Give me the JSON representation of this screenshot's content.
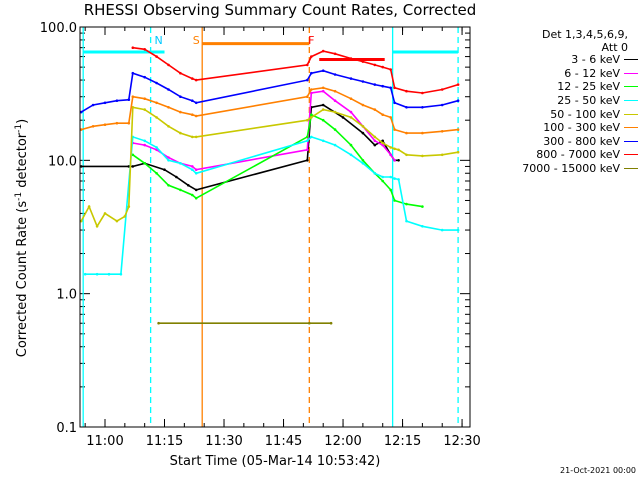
{
  "chart_data": {
    "type": "line",
    "title": "RHESSI Observing Summary Count Rates, Corrected",
    "xlabel": "Start Time (05-Mar-14 10:53:42)",
    "ylabel": "Corrected Count Rate (s⁻¹ detector⁻¹)",
    "ylabel_main": "Corrected Count Rate (s",
    "ylabel_sup1": "-1",
    "ylabel_mid": " detector",
    "ylabel_sup2": "-1",
    "ylabel_end": ")",
    "yscale": "log",
    "ylim": [
      0.1,
      100
    ],
    "xlim": [
      "10:53:42",
      "12:32:00"
    ],
    "x_ticks": [
      "11:00",
      "11:15",
      "11:30",
      "11:45",
      "12:00",
      "12:15",
      "12:30"
    ],
    "y_ticks": [
      "0.1",
      "1.0",
      "10.0",
      "100.0"
    ],
    "detectors": "Det 1,3,4,5,6,9,\nAtt 0",
    "legend_placement": "right",
    "footer_date": "21-Oct-2021 00:00",
    "markers": [
      {
        "label": "N",
        "time": "11:13:30",
        "color": "#00c8ff"
      },
      {
        "label": "S",
        "time": "11:23:00",
        "color": "#ff8000"
      },
      {
        "label": "F",
        "time": "11:52:00",
        "color": "#ff0000"
      }
    ],
    "vertical_lines": [
      {
        "time": "10:54:30",
        "color": "#00ffff",
        "style": "solid"
      },
      {
        "time": "11:11:30",
        "color": "#00ffff",
        "style": "dashed"
      },
      {
        "time": "11:24:30",
        "color": "#ff8000",
        "style": "solid"
      },
      {
        "time": "11:51:30",
        "color": "#ff8000",
        "style": "dashed"
      },
      {
        "time": "12:12:30",
        "color": "#00ffff",
        "style": "solid"
      },
      {
        "time": "12:29:00",
        "color": "#00ffff",
        "style": "dashed"
      }
    ],
    "flags": [
      {
        "start": "10:54:30",
        "end": "11:15:00",
        "y": 65,
        "color": "#00ffff"
      },
      {
        "start": "11:24:30",
        "end": "11:51:30",
        "y": 75,
        "color": "#ff8000"
      },
      {
        "start": "11:54:00",
        "end": "12:10:30",
        "y": 57,
        "color": "#ff0000"
      },
      {
        "start": "12:12:30",
        "end": "12:29:00",
        "y": 65,
        "color": "#00ffff"
      }
    ],
    "series": [
      {
        "name": "3 - 6 keV",
        "color": "#000000",
        "x": [
          "10:54",
          "11:06",
          "11:07",
          "11:10",
          "11:15",
          "11:18",
          "11:21",
          "11:23",
          "11:51",
          "11:52",
          "11:55",
          "12:00",
          "12:05",
          "12:08",
          "12:10",
          "12:12",
          "12:13",
          "12:14"
        ],
        "y": [
          9,
          9,
          9,
          9.5,
          8.5,
          7.5,
          6.5,
          6,
          10,
          25,
          26,
          21,
          16,
          13,
          14,
          11,
          10,
          10
        ]
      },
      {
        "name": "6 - 12 keV",
        "color": "#ff00ff",
        "x": [
          "11:07",
          "11:10",
          "11:13",
          "11:16",
          "11:19",
          "11:22",
          "11:23",
          "11:51",
          "11:52",
          "11:55",
          "11:58",
          "12:02",
          "12:05",
          "12:08",
          "12:10",
          "12:12",
          "12:13"
        ],
        "y": [
          13.5,
          13,
          12,
          10.5,
          9.5,
          9,
          8.5,
          12,
          32,
          33,
          28,
          23,
          18,
          14,
          13,
          11,
          10
        ]
      },
      {
        "name": "12 - 25 keV",
        "color": "#00ff00",
        "x": [
          "11:07",
          "11:10",
          "11:13",
          "11:16",
          "11:19",
          "11:22",
          "11:23",
          "11:51",
          "11:52",
          "11:55",
          "11:58",
          "12:02",
          "12:05",
          "12:08",
          "12:10",
          "12:12",
          "12:13",
          "12:16",
          "12:20"
        ],
        "y": [
          11,
          9.5,
          8,
          6.5,
          6,
          5.5,
          5.2,
          15,
          22,
          20,
          17,
          13,
          10,
          8,
          7,
          6,
          5,
          4.7,
          4.5
        ]
      },
      {
        "name": "25 - 50 keV",
        "color": "#00ffff",
        "x": [
          "10:55",
          "10:58",
          "11:01",
          "11:04",
          "11:07",
          "11:10",
          "11:13",
          "11:16",
          "11:19",
          "11:22",
          "11:23",
          "11:51",
          "11:52",
          "11:55",
          "11:58",
          "12:02",
          "12:05",
          "12:08",
          "12:10",
          "12:12",
          "12:13",
          "12:14",
          "12:16",
          "12:20",
          "12:25",
          "12:29"
        ],
        "y": [
          1.4,
          1.4,
          1.4,
          1.4,
          15,
          14,
          12.5,
          10,
          9.5,
          8.5,
          8,
          14,
          15,
          14,
          13,
          11,
          9.5,
          8,
          7.5,
          7.5,
          7.3,
          7.2,
          3.5,
          3.2,
          3.0,
          3.0
        ]
      },
      {
        "name": "50 - 100 keV",
        "color": "#c8c800",
        "x": [
          "10:54",
          "10:56",
          "10:58",
          "11:00",
          "11:03",
          "11:05",
          "11:06",
          "11:07",
          "11:10",
          "11:13",
          "11:16",
          "11:19",
          "11:22",
          "11:23",
          "11:51",
          "11:52",
          "11:55",
          "11:58",
          "12:02",
          "12:05",
          "12:08",
          "12:10",
          "12:12",
          "12:13",
          "12:14",
          "12:16",
          "12:20",
          "12:25",
          "12:29"
        ],
        "y": [
          3.5,
          4.5,
          3.2,
          4,
          3.5,
          3.8,
          4.5,
          25,
          24,
          21,
          18,
          16,
          15,
          15,
          20,
          21,
          24,
          23,
          21,
          18,
          15,
          13.5,
          12.5,
          12.2,
          12,
          11,
          10.8,
          11,
          11.5
        ]
      },
      {
        "name": "100 - 300 keV",
        "color": "#ff8000",
        "x": [
          "10:54",
          "10:57",
          "11:00",
          "11:03",
          "11:06",
          "11:07",
          "11:10",
          "11:13",
          "11:16",
          "11:19",
          "11:22",
          "11:23",
          "11:51",
          "11:52",
          "11:55",
          "11:58",
          "12:02",
          "12:05",
          "12:08",
          "12:10",
          "12:12",
          "12:13",
          "12:16",
          "12:20",
          "12:25",
          "12:29"
        ],
        "y": [
          17,
          18,
          18.5,
          19,
          19,
          30,
          29,
          27,
          25,
          23,
          22,
          21.5,
          30,
          34,
          35,
          33,
          29,
          26,
          24,
          22,
          21,
          17,
          16,
          16,
          16.5,
          17
        ]
      },
      {
        "name": "300 - 800 keV",
        "color": "#0000ff",
        "x": [
          "10:54",
          "10:57",
          "11:00",
          "11:03",
          "11:06",
          "11:07",
          "11:10",
          "11:13",
          "11:16",
          "11:19",
          "11:22",
          "11:23",
          "11:51",
          "11:52",
          "11:55",
          "11:58",
          "12:02",
          "12:05",
          "12:08",
          "12:10",
          "12:12",
          "12:13",
          "12:16",
          "12:20",
          "12:25",
          "12:29"
        ],
        "y": [
          23,
          26,
          27,
          28,
          28.5,
          45,
          42,
          38,
          34,
          30,
          28,
          27,
          40,
          45,
          47,
          44,
          41,
          39,
          37,
          36,
          35,
          27,
          25,
          25,
          26,
          28
        ]
      },
      {
        "name": "800 - 7000 keV",
        "color": "#ff0000",
        "x": [
          "11:07",
          "11:10",
          "11:13",
          "11:16",
          "11:19",
          "11:22",
          "11:23",
          "11:51",
          "11:52",
          "11:55",
          "11:58",
          "12:02",
          "12:05",
          "12:08",
          "12:10",
          "12:12",
          "12:13",
          "12:16",
          "12:20",
          "12:25",
          "12:29"
        ],
        "y": [
          70,
          68,
          60,
          52,
          45,
          41,
          40,
          52,
          60,
          66,
          63,
          58,
          55,
          52,
          50,
          48,
          35,
          33,
          32,
          34,
          37
        ]
      },
      {
        "name": "7000 - 15000 keV",
        "color": "#808000",
        "x": [
          "11:13:30",
          "11:51:30",
          "11:57:00"
        ],
        "y": [
          0.6,
          0.6,
          0.6
        ]
      }
    ]
  }
}
